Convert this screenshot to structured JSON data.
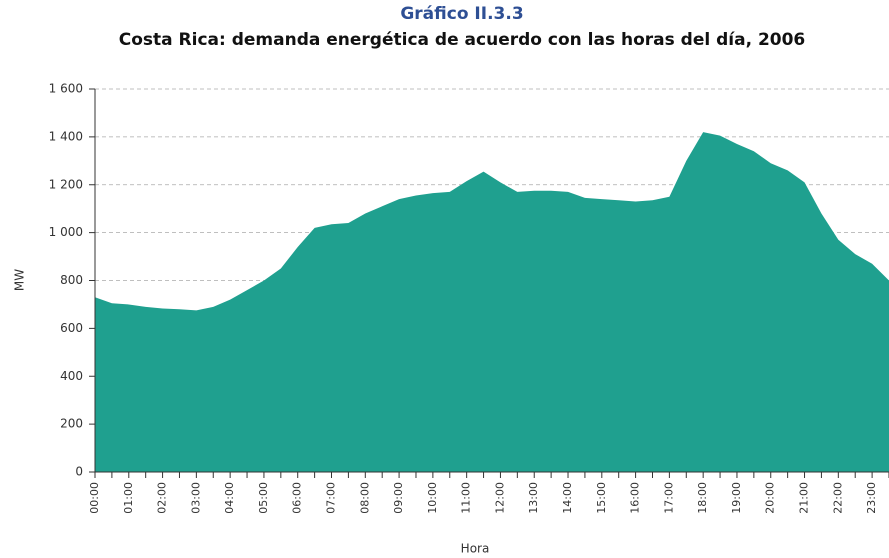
{
  "chart_data": {
    "type": "area",
    "title": "Gráfico II.3.3",
    "subtitle": "Costa Rica: demanda energética de acuerdo con las horas del día, 2006",
    "y_label": "MW",
    "x_label": "Hora",
    "color": "#1fa08f",
    "grid": true,
    "categories": [
      "00:00",
      null,
      "01:00",
      null,
      "02:00",
      null,
      "03:00",
      null,
      "04:00",
      null,
      "05:00",
      null,
      "06:00",
      null,
      "07:00",
      null,
      "08:00",
      null,
      "09:00",
      null,
      "10:00",
      null,
      "11:00",
      null,
      "12:00",
      null,
      "13:00",
      null,
      "14:00",
      null,
      "15:00",
      null,
      "16:00",
      null,
      "17:00",
      null,
      "18:00",
      null,
      "19:00",
      null,
      "20:00",
      null,
      "21:00",
      null,
      "22:00",
      null,
      "23:00",
      null
    ],
    "values": [
      730,
      705,
      700,
      690,
      683,
      680,
      675,
      690,
      720,
      760,
      800,
      850,
      940,
      1020,
      1035,
      1040,
      1080,
      1110,
      1140,
      1155,
      1165,
      1170,
      1215,
      1255,
      1210,
      1170,
      1175,
      1175,
      1170,
      1145,
      1140,
      1135,
      1130,
      1135,
      1150,
      1300,
      1420,
      1405,
      1370,
      1340,
      1290,
      1260,
      1210,
      1080,
      970,
      910,
      870,
      800
    ],
    "ylim": [
      0,
      1600
    ],
    "yticks": [
      0,
      200,
      400,
      600,
      800,
      {
        "value": 1000,
        "label": "1 000"
      },
      {
        "value": 1200,
        "label": "1 200"
      },
      {
        "value": 1400,
        "label": "1 400"
      },
      {
        "value": 1600,
        "label": "1 600"
      }
    ]
  }
}
